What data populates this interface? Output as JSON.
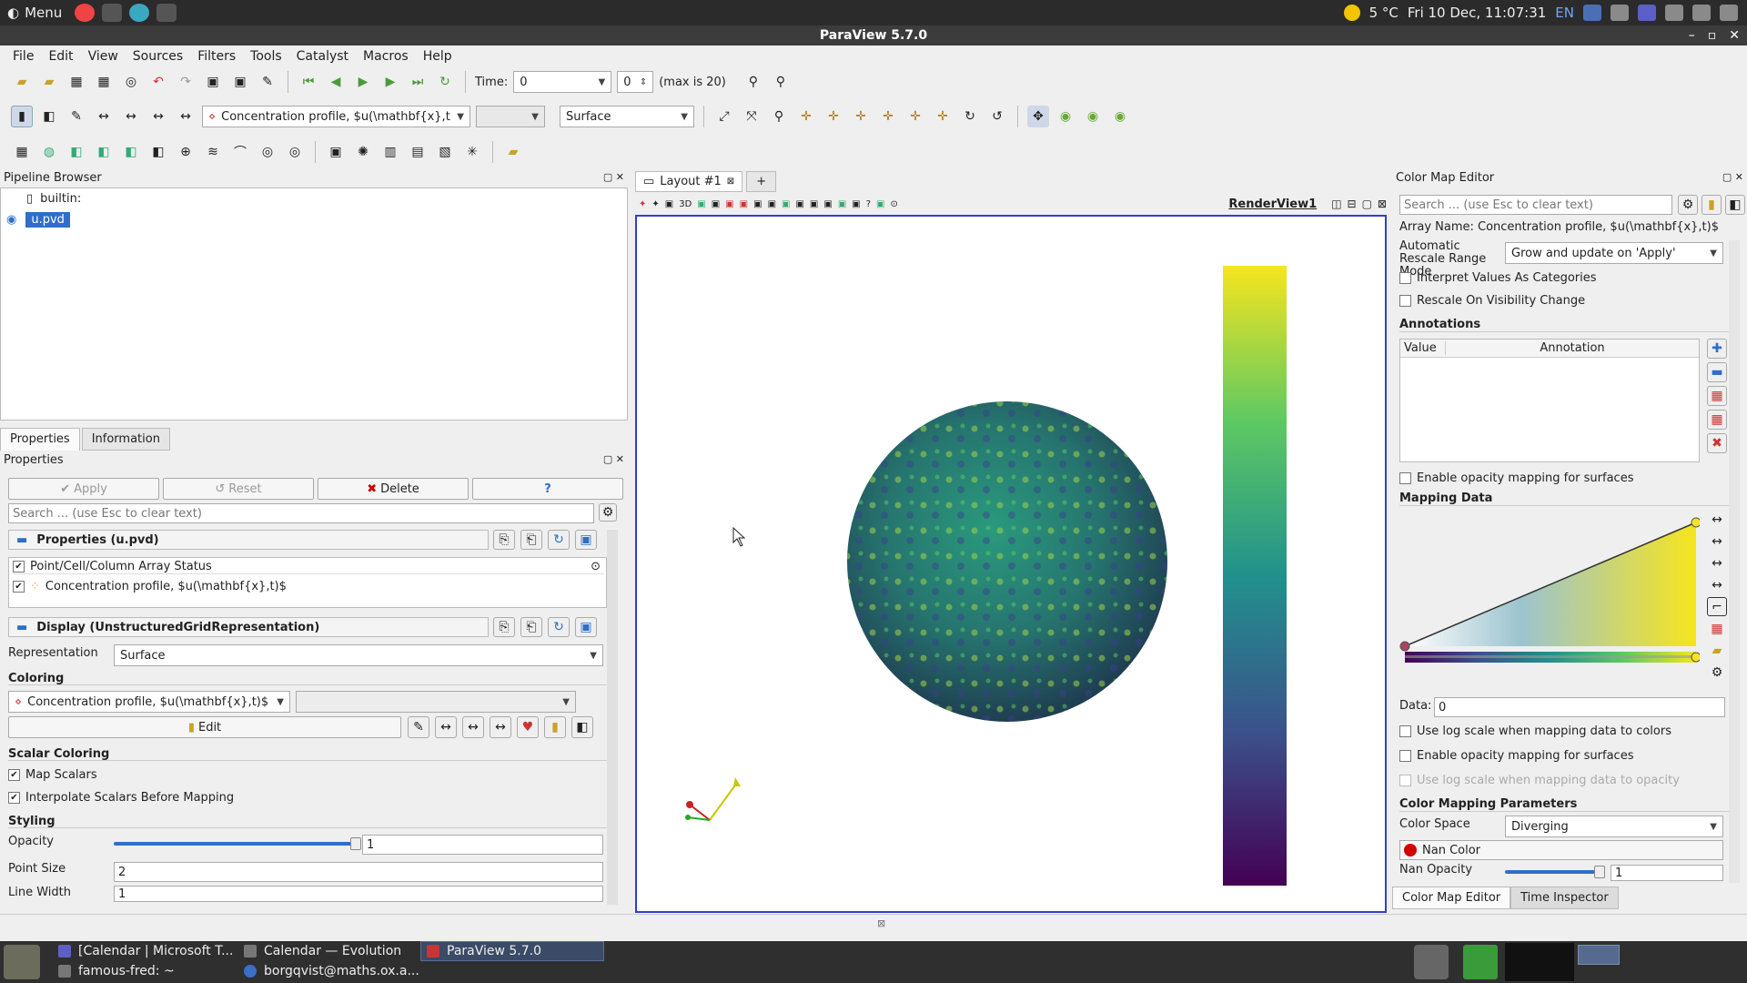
{
  "sysbar": {
    "menu_label": "Menu",
    "weather": "5 °C",
    "datetime": "Fri 10 Dec, 11:07:31",
    "lang": "EN"
  },
  "window": {
    "title": "ParaView 5.7.0"
  },
  "menubar": [
    "File",
    "Edit",
    "View",
    "Sources",
    "Filters",
    "Tools",
    "Catalyst",
    "Macros",
    "Help"
  ],
  "toolbar1": {
    "time_label": "Time:",
    "time_value": "0",
    "step_value": "0",
    "max_label": "(max is 20)"
  },
  "toolbar2": {
    "array_combo": "Concentration profile, $u(\\mathbf{x},t)$",
    "representation_combo": "Surface"
  },
  "pipeline": {
    "title": "Pipeline Browser",
    "root": "builtin:",
    "item": "u.pvd"
  },
  "tabs": {
    "properties": "Properties",
    "information": "Information"
  },
  "properties": {
    "title": "Properties",
    "apply": "Apply",
    "reset": "Reset",
    "delete": "Delete",
    "help": "?",
    "search_placeholder": "Search ... (use Esc to clear text)",
    "section_props": "Properties (u.pvd)",
    "array_status": "Point/Cell/Column Array Status",
    "array_item": "Concentration profile, $u(\\mathbf{x},t)$",
    "section_display": "Display (UnstructuredGridRepresentation)",
    "representation_label": "Representation",
    "representation_value": "Surface",
    "coloring_label": "Coloring",
    "coloring_value": "Concentration profile, $u(\\mathbf{x},t)$",
    "edit": "Edit",
    "scalar_coloring": "Scalar Coloring",
    "map_scalars": "Map Scalars",
    "interpolate": "Interpolate Scalars Before Mapping",
    "styling": "Styling",
    "opacity_label": "Opacity",
    "opacity_value": "1",
    "opacity_level": 1.0,
    "point_size_label": "Point Size",
    "point_size_value": "2",
    "line_width_label": "Line Width",
    "line_width_value": "1"
  },
  "layout": {
    "tab": "Layout #1",
    "plus": "+",
    "render_view": "RenderView1",
    "threed": "3D"
  },
  "colormap": {
    "title": "Color Map Editor",
    "search_placeholder": "Search ... (use Esc to clear text)",
    "array_name": "Array Name: Concentration profile, $u(\\mathbf{x},t)$",
    "auto_rescale_label": "Automatic Rescale Range Mode",
    "auto_rescale_value": "Grow and update on 'Apply'",
    "interpret_categories": "Interpret Values As Categories",
    "rescale_visibility": "Rescale On Visibility Change",
    "annotations": "Annotations",
    "col_value": "Value",
    "col_annotation": "Annotation",
    "opacity_mapping": "Enable opacity mapping for surfaces",
    "mapping_data": "Mapping Data",
    "data_label": "Data:",
    "data_value": "0",
    "log_colors": "Use log scale when mapping data to colors",
    "opacity_mapping2": "Enable opacity mapping for surfaces",
    "log_opacity": "Use log scale when mapping data to opacity",
    "params": "Color Mapping Parameters",
    "color_space_label": "Color Space",
    "color_space_value": "Diverging",
    "nan_color": "Nan Color",
    "nan_opacity_label": "Nan Opacity",
    "nan_opacity_value": "1",
    "nan_opacity_level": 1.0,
    "tab_editor": "Color Map Editor",
    "tab_time": "Time Inspector"
  },
  "taskbar": {
    "t1": "[Calendar | Microsoft T...",
    "t2": "Calendar — Evolution",
    "t3": "ParaView 5.7.0",
    "t4": "famous-fred: ~",
    "t5": "borgqvist@maths.ox.a..."
  },
  "colors": {
    "accent": "#2f6ec9",
    "viridis_top": "#f6e51e",
    "viridis_bottom": "#430d54",
    "nan": "#d10000"
  }
}
